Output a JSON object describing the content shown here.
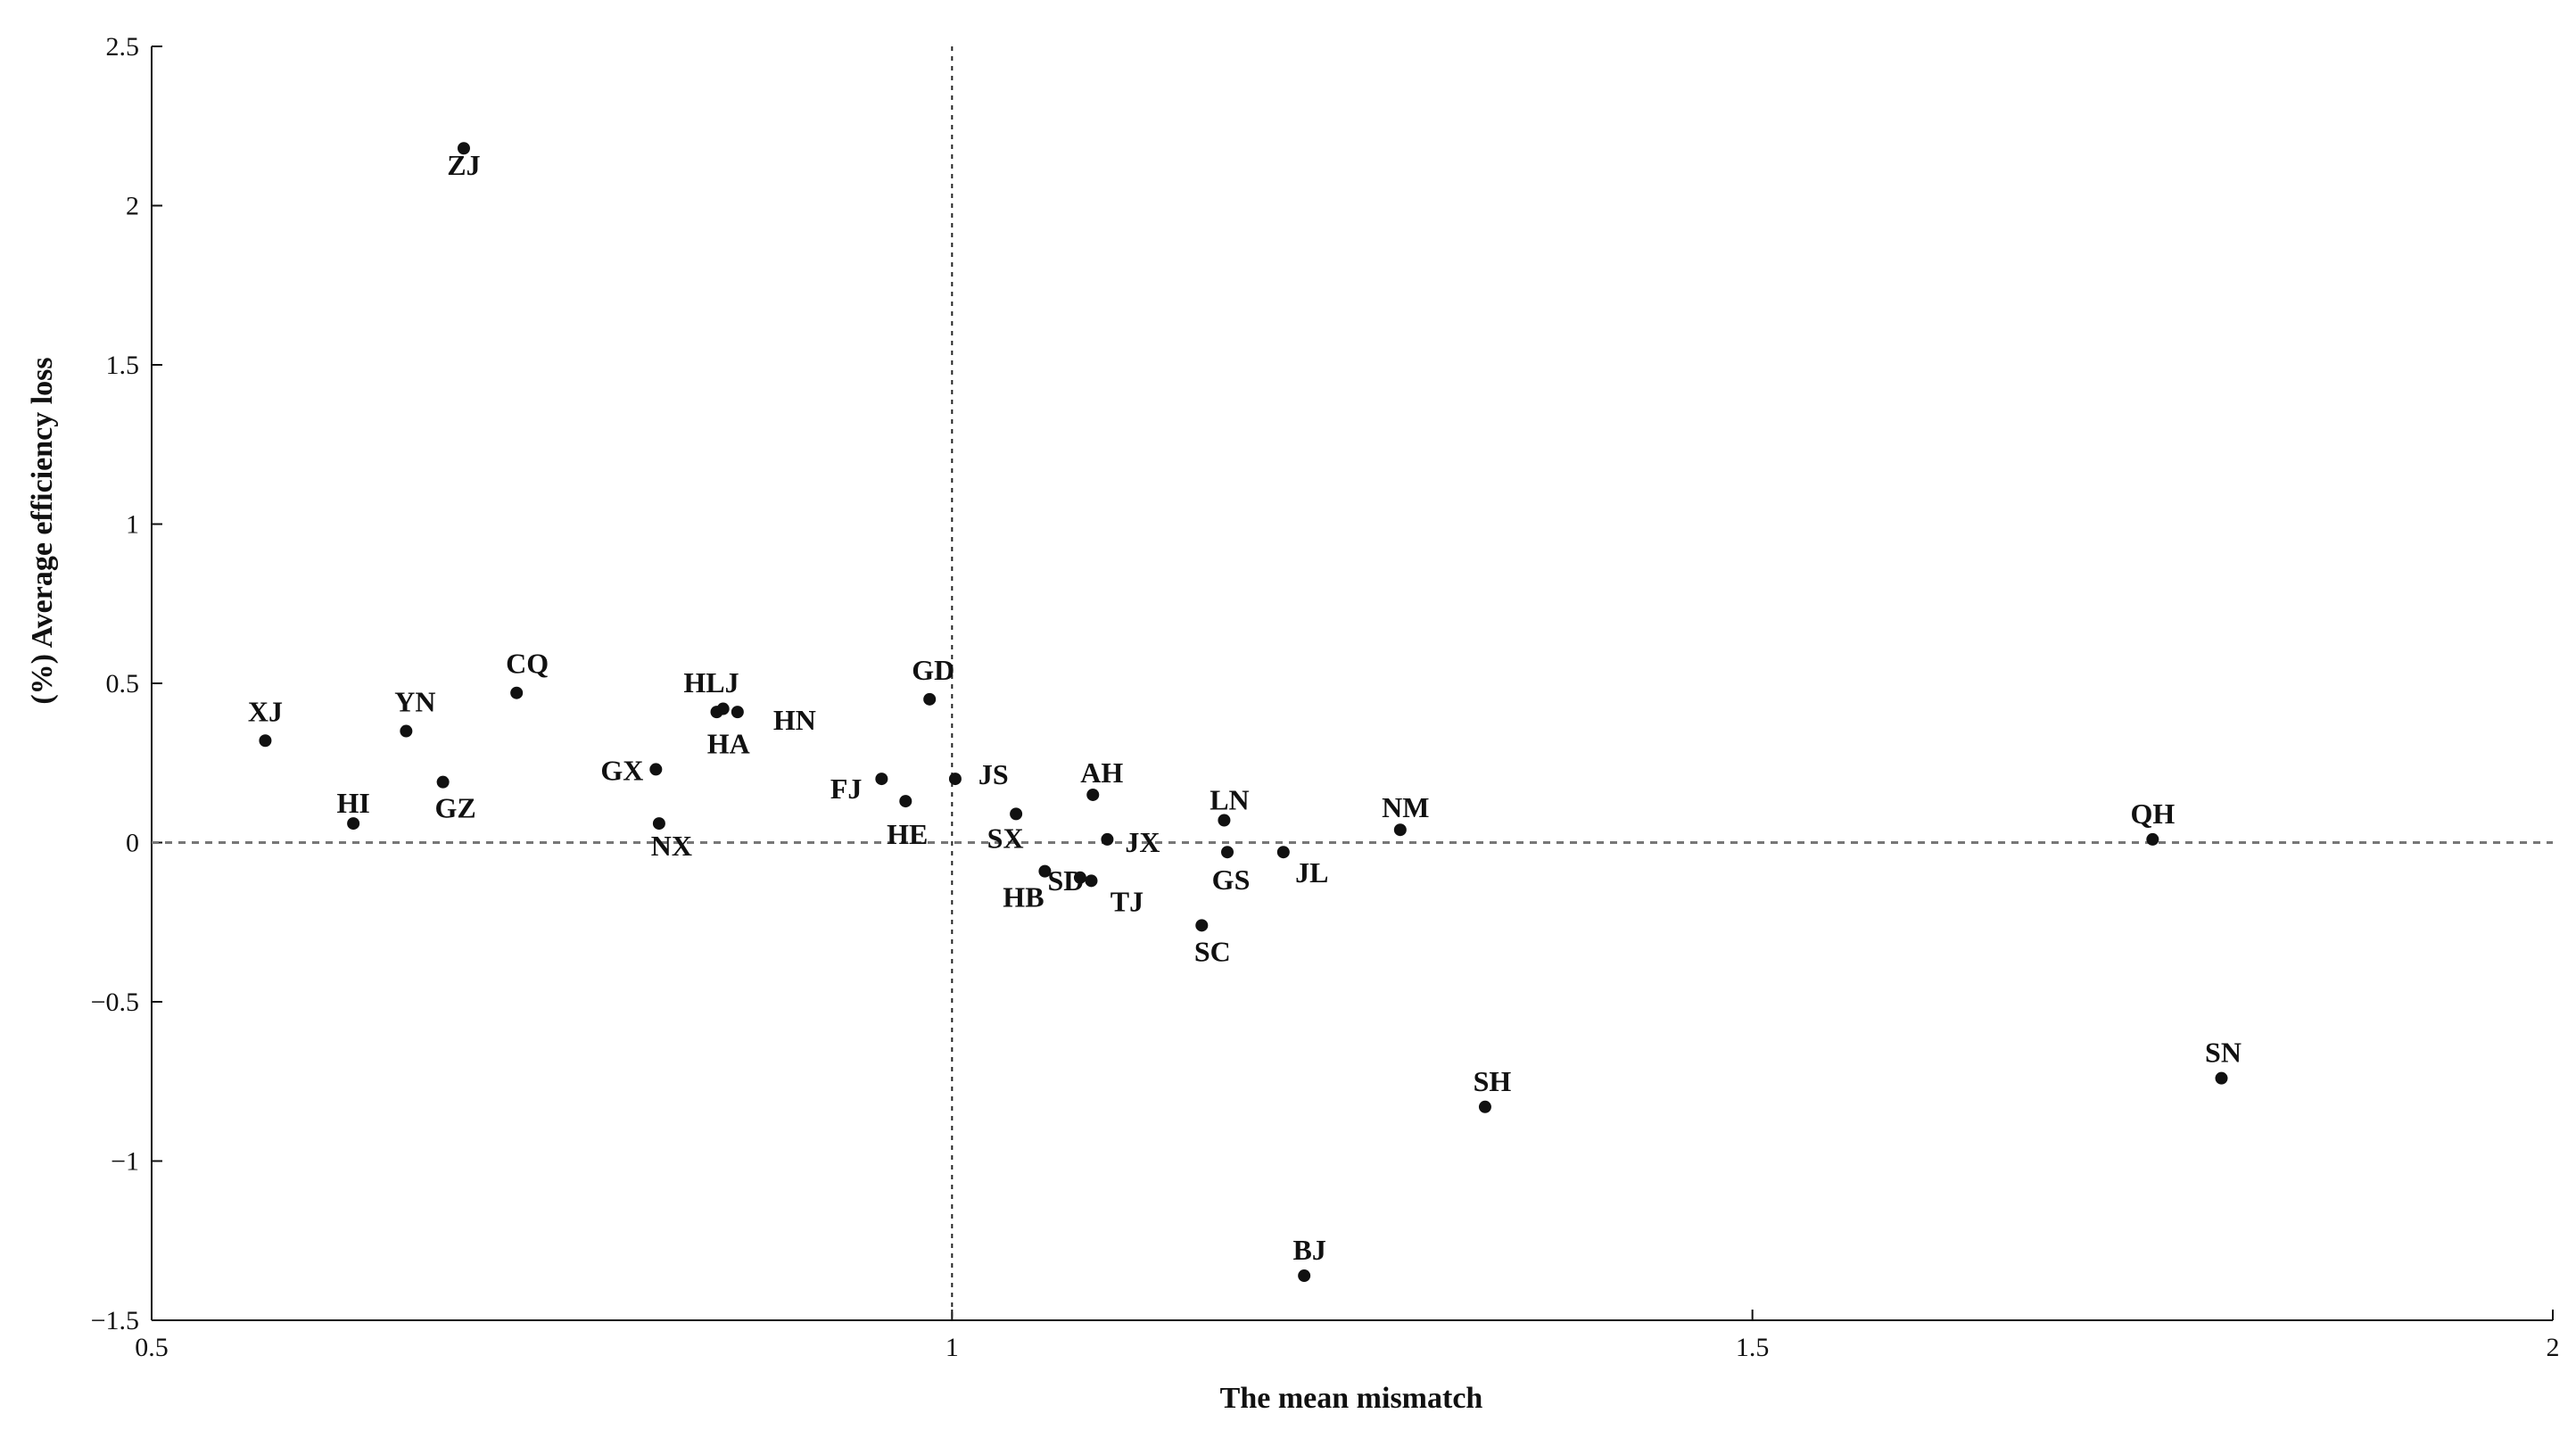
{
  "chart_data": {
    "type": "scatter",
    "title": "",
    "xlabel": "The mean mismatch",
    "ylabel": "(%)  Average efficiency loss",
    "xlim": [
      0.5,
      2
    ],
    "ylim": [
      -1.5,
      2.5
    ],
    "xticks": [
      0.5,
      1,
      1.5,
      2
    ],
    "xtick_labels": [
      "0.5",
      "1",
      "1.5",
      "2"
    ],
    "yticks": [
      -1.5,
      -1,
      -0.5,
      0,
      0.5,
      1,
      1.5,
      2,
      2.5
    ],
    "ytick_labels": [
      "−1.5",
      "−1",
      "−0.5",
      "0",
      "0.5",
      "1",
      "1.5",
      "2",
      "2.5"
    ],
    "grid": false,
    "legend": "none",
    "reference_lines": {
      "x": 1,
      "y": 0
    },
    "points": [
      {
        "label": "ZJ",
        "x": 0.695,
        "y": 2.18
      },
      {
        "label": "XJ",
        "x": 0.571,
        "y": 0.32
      },
      {
        "label": "YN",
        "x": 0.659,
        "y": 0.35
      },
      {
        "label": "CQ",
        "x": 0.728,
        "y": 0.47
      },
      {
        "label": "HI",
        "x": 0.626,
        "y": 0.06
      },
      {
        "label": "GZ",
        "x": 0.682,
        "y": 0.19
      },
      {
        "label": "HLJ",
        "x": 0.853,
        "y": 0.41
      },
      {
        "label": "HA",
        "x": 0.857,
        "y": 0.42
      },
      {
        "label": "HN",
        "x": 0.866,
        "y": 0.41
      },
      {
        "label": "GX",
        "x": 0.815,
        "y": 0.23
      },
      {
        "label": "NX",
        "x": 0.817,
        "y": 0.06
      },
      {
        "label": "GD",
        "x": 0.986,
        "y": 0.45
      },
      {
        "label": "FJ",
        "x": 0.956,
        "y": 0.2
      },
      {
        "label": "HE",
        "x": 0.971,
        "y": 0.13
      },
      {
        "label": "JS",
        "x": 1.002,
        "y": 0.2
      },
      {
        "label": "SX",
        "x": 1.04,
        "y": 0.09
      },
      {
        "label": "AH",
        "x": 1.088,
        "y": 0.15
      },
      {
        "label": "JX",
        "x": 1.097,
        "y": 0.01
      },
      {
        "label": "SD",
        "x": 1.08,
        "y": -0.11
      },
      {
        "label": "HB",
        "x": 1.058,
        "y": -0.09
      },
      {
        "label": "TJ",
        "x": 1.087,
        "y": -0.12
      },
      {
        "label": "LN",
        "x": 1.17,
        "y": 0.07
      },
      {
        "label": "GS",
        "x": 1.172,
        "y": -0.03
      },
      {
        "label": "JL",
        "x": 1.207,
        "y": -0.03
      },
      {
        "label": "SC",
        "x": 1.156,
        "y": -0.26
      },
      {
        "label": "NM",
        "x": 1.28,
        "y": 0.04
      },
      {
        "label": "BJ",
        "x": 1.22,
        "y": -1.36
      },
      {
        "label": "SH",
        "x": 1.333,
        "y": -0.83
      },
      {
        "label": "QH",
        "x": 1.75,
        "y": 0.01
      },
      {
        "label": "SN",
        "x": 1.793,
        "y": -0.74
      }
    ]
  }
}
